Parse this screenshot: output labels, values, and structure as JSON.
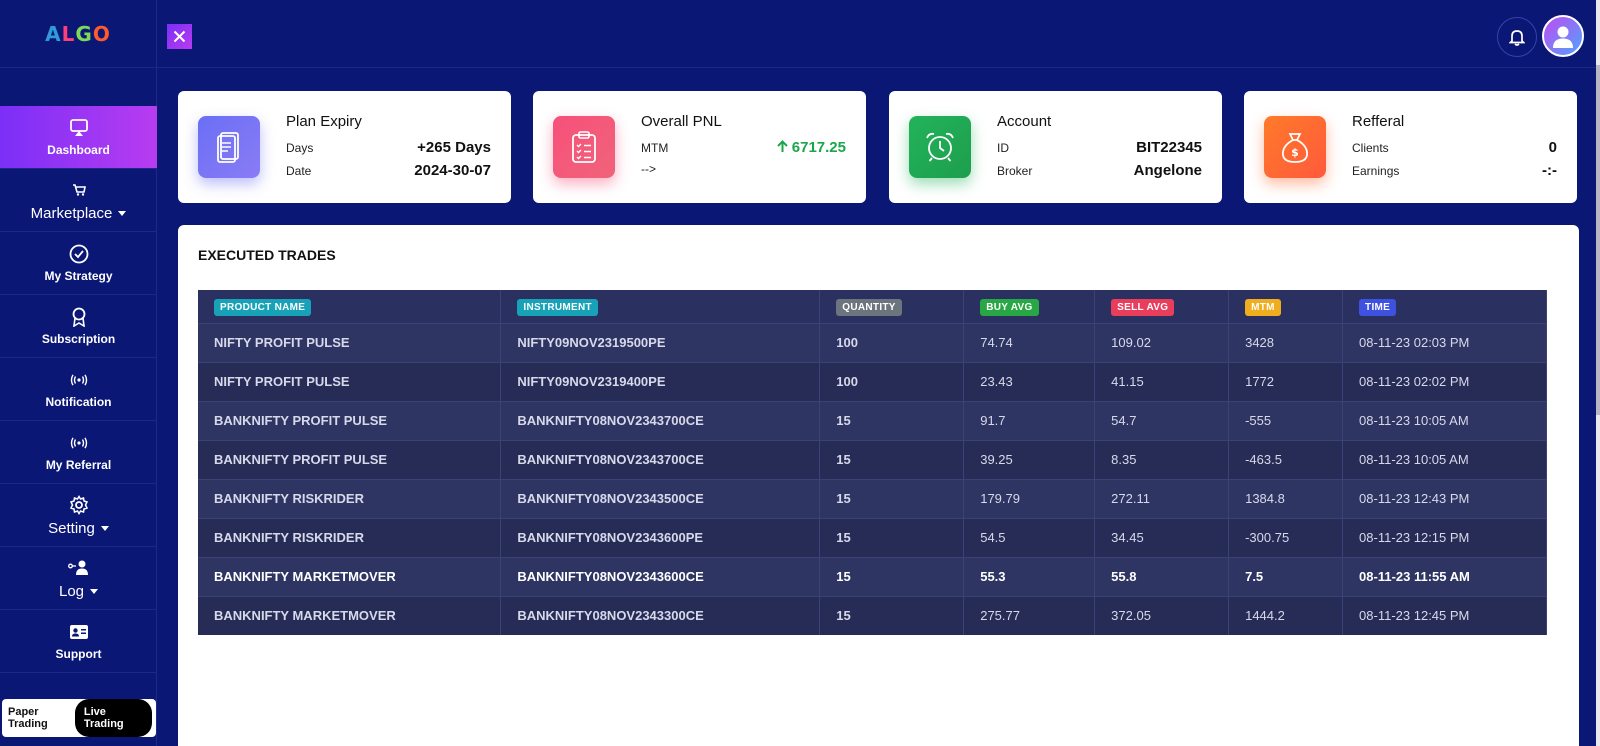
{
  "logo": {
    "text_a": "A",
    "text_b": "L",
    "text_c": "G",
    "text_d": "O"
  },
  "sidebar": {
    "items": [
      {
        "label": "Dashboard",
        "icon": "monitor-icon"
      },
      {
        "label": "Marketplace",
        "icon": "cart-icon"
      },
      {
        "label": "My Strategy",
        "icon": "check-circle-icon"
      },
      {
        "label": "Subscription",
        "icon": "award-icon"
      },
      {
        "label": "Notification",
        "icon": "broadcast-icon"
      },
      {
        "label": "My Referral",
        "icon": "broadcast-icon"
      },
      {
        "label": "Setting",
        "icon": "gear-icon"
      },
      {
        "label": "Log",
        "icon": "user-link-icon"
      },
      {
        "label": "Support",
        "icon": "id-card-icon"
      }
    ],
    "mode": {
      "paper": "Paper Trading",
      "live": "Live Trading"
    }
  },
  "cards": {
    "plan": {
      "title": "Plan Expiry",
      "days_label": "Days",
      "days_value": "+265 Days",
      "date_label": "Date",
      "date_value": "2024-30-07"
    },
    "pnl": {
      "title": "Overall PNL",
      "mtm_label": "MTM",
      "mtm_value": "6717.25",
      "arrow_label": "-->"
    },
    "account": {
      "title": "Account",
      "id_label": "ID",
      "id_value": "BIT22345",
      "broker_label": "Broker",
      "broker_value": "Angelone"
    },
    "referral": {
      "title": "Refferal",
      "clients_label": "Clients",
      "clients_value": "0",
      "earnings_label": "Earnings",
      "earnings_value": "-:-"
    }
  },
  "trades": {
    "title": "EXECUTED TRADES",
    "headers": [
      {
        "label": "PRODUCT NAME",
        "color": "#17a2b8"
      },
      {
        "label": "INSTRUMENT",
        "color": "#17a2b8"
      },
      {
        "label": "QUANTITY",
        "color": "#6c757d"
      },
      {
        "label": "BUY AVG",
        "color": "#28a745"
      },
      {
        "label": "SELL AVG",
        "color": "#e83e5c"
      },
      {
        "label": "MTM",
        "color": "#f0ad1e"
      },
      {
        "label": "TIME",
        "color": "#3f51e0"
      }
    ],
    "rows": [
      [
        "NIFTY PROFIT PULSE",
        "NIFTY09NOV2319500PE",
        "100",
        "74.74",
        "109.02",
        "3428",
        "08-11-23 02:03 PM"
      ],
      [
        "NIFTY PROFIT PULSE",
        "NIFTY09NOV2319400PE",
        "100",
        "23.43",
        "41.15",
        "1772",
        "08-11-23 02:02 PM"
      ],
      [
        "BANKNIFTY PROFIT PULSE",
        "BANKNIFTY08NOV2343700CE",
        "15",
        "91.7",
        "54.7",
        "-555",
        "08-11-23 10:05 AM"
      ],
      [
        "BANKNIFTY PROFIT PULSE",
        "BANKNIFTY08NOV2343700CE",
        "15",
        "39.25",
        "8.35",
        "-463.5",
        "08-11-23 10:05 AM"
      ],
      [
        "BANKNIFTY RISKRIDER",
        "BANKNIFTY08NOV2343500CE",
        "15",
        "179.79",
        "272.11",
        "1384.8",
        "08-11-23 12:43 PM"
      ],
      [
        "BANKNIFTY RISKRIDER",
        "BANKNIFTY08NOV2343600PE",
        "15",
        "54.5",
        "34.45",
        "-300.75",
        "08-11-23 12:15 PM"
      ],
      [
        "BANKNIFTY MARKETMOVER",
        "BANKNIFTY08NOV2343600CE",
        "15",
        "55.3",
        "55.8",
        "7.5",
        "08-11-23 11:55 AM"
      ],
      [
        "BANKNIFTY MARKETMOVER",
        "BANKNIFTY08NOV2343300CE",
        "15",
        "275.77",
        "372.05",
        "1444.2",
        "08-11-23 12:45 PM"
      ]
    ]
  }
}
